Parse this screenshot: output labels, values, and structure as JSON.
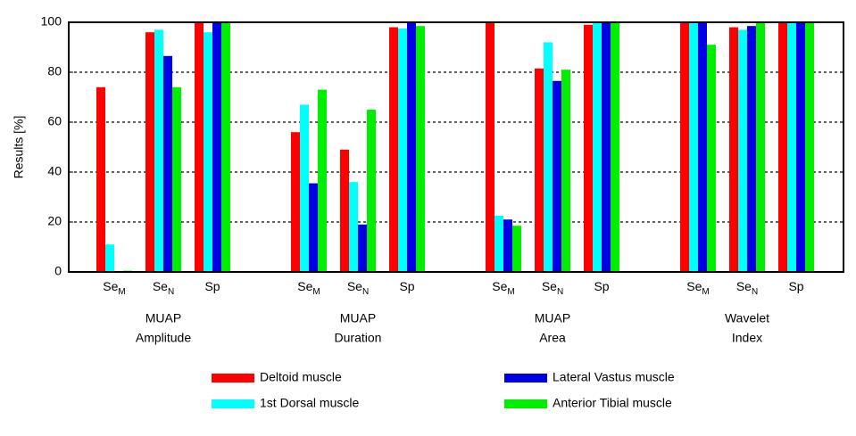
{
  "chart_data": {
    "type": "bar",
    "y_label": "Results [%]",
    "ylim": [
      0,
      100
    ],
    "yticks": [
      0,
      20,
      40,
      60,
      80,
      100
    ],
    "grid": true,
    "legend": "bottom",
    "categories": [
      [
        "Se",
        "M"
      ],
      [
        "Se",
        "N"
      ],
      [
        "Sp"
      ],
      [
        "Se",
        "M"
      ],
      [
        "Se",
        "N"
      ],
      [
        "Sp"
      ],
      [
        "Se",
        "M"
      ],
      [
        "Se",
        "N"
      ],
      [
        "Sp"
      ],
      [
        "Se",
        "M"
      ],
      [
        "Se",
        "N"
      ],
      [
        "Sp"
      ]
    ],
    "groups": [
      [
        "MUAP",
        "Amplitude"
      ],
      [
        "MUAP",
        "Duration"
      ],
      [
        "MUAP",
        "Area"
      ],
      [
        "Wavelet",
        "Index"
      ]
    ],
    "series": [
      {
        "name": "Deltoid muscle",
        "color": "#ff0000",
        "values": [
          74,
          96,
          100,
          56,
          49,
          98,
          100,
          81.5,
          99,
          100,
          98,
          100
        ]
      },
      {
        "name": "1st Dorsal muscle",
        "color": "#00ffff",
        "values": [
          11,
          97,
          96,
          67,
          36,
          97.5,
          22.5,
          92,
          100,
          100,
          97,
          100
        ]
      },
      {
        "name": "Lateral Vastus muscle",
        "color": "#0000e6",
        "values": [
          0,
          86.5,
          100,
          35.5,
          19,
          100,
          21,
          76.5,
          100,
          100,
          98.5,
          100
        ]
      },
      {
        "name": "Anterior Tibial muscle",
        "color": "#00ee00",
        "values": [
          0.5,
          74,
          100,
          73,
          65,
          98.5,
          18.5,
          81,
          100,
          91,
          100,
          100
        ]
      }
    ]
  }
}
